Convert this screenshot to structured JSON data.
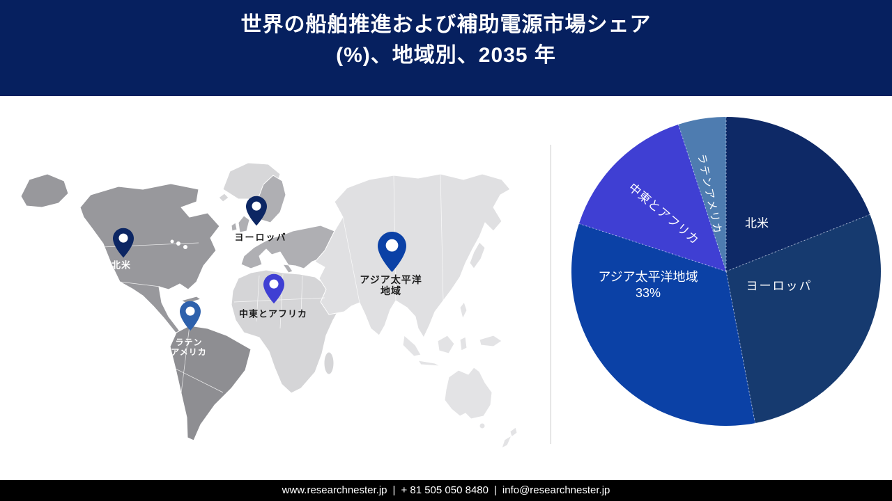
{
  "header": {
    "title_line1": "世界の船舶推進および補助電源市場シェア",
    "title_line2": "(%)、地域別、2035 年",
    "bg_color": "#06205F"
  },
  "map": {
    "pins": [
      {
        "id": "north-america",
        "label_lines": [
          "北米"
        ],
        "color": "#0C2663",
        "text_color": "#FFFFFF"
      },
      {
        "id": "europe",
        "label_lines": [
          "ヨーロッパ"
        ],
        "color": "#0C2663",
        "text_color": "#1B1B1B"
      },
      {
        "id": "middle-east-africa",
        "label_lines": [
          "中東とアフリカ"
        ],
        "color": "#3F3FD3",
        "text_color": "#1B1B1B"
      },
      {
        "id": "latin-america",
        "label_lines": [
          "ラテン",
          "アメリカ"
        ],
        "color": "#2E61AC",
        "text_color": "#FFFFFF"
      },
      {
        "id": "asia-pacific",
        "label_lines": [
          "アジア太平洋",
          "地域"
        ],
        "color": "#0B41A6",
        "text_color": "#1B1B1B"
      }
    ]
  },
  "chart_data": {
    "type": "pie",
    "title": "世界の船舶推進および補助電源市場シェア (%)、地域別、2035 年",
    "unit": "%",
    "year_label": "2035 年",
    "start_angle_deg": 0,
    "direction": "clockwise",
    "legend_position": "labels-on-slices",
    "segments": [
      {
        "label": "北米",
        "value": 19,
        "color": "#0E2966",
        "value_label": ""
      },
      {
        "label": "ヨーロッパ",
        "value": 28,
        "color": "#163A6F",
        "value_label": ""
      },
      {
        "label": "アジア太平洋地域",
        "value": 33,
        "color": "#0B41A6",
        "value_label": "33%"
      },
      {
        "label": "中東とアフリカ",
        "value": 15,
        "color": "#3F3FD3",
        "value_label": ""
      },
      {
        "label": "ラテンアメリカ",
        "value": 5,
        "color": "#4E7CB0",
        "value_label": ""
      }
    ]
  },
  "footer": {
    "website": "www.researchnester.jp",
    "separator": "|",
    "phone": "+ 81 505 050 8480",
    "email": "info@researchnester.jp"
  }
}
